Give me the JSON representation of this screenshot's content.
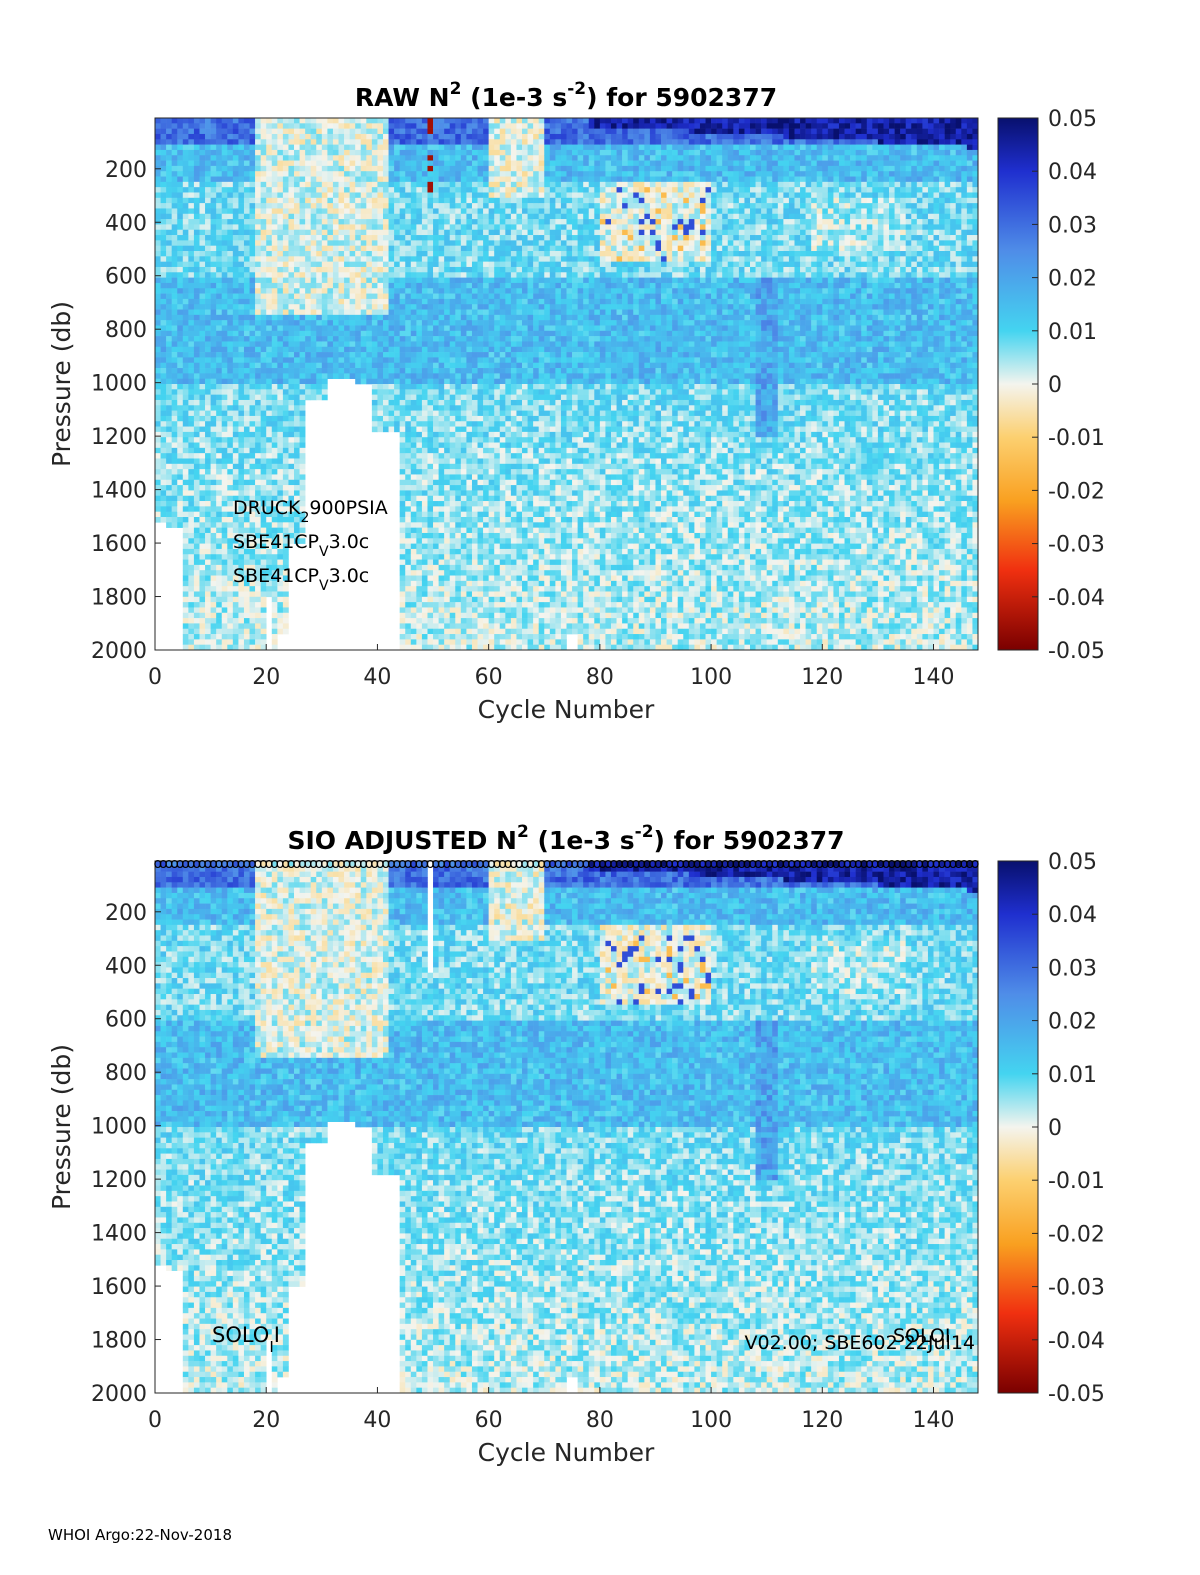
{
  "chart_data": [
    {
      "type": "heatmap",
      "title_parts": [
        "RAW N",
        "2",
        " (1e-3 s",
        "-2",
        ") for 5902377"
      ],
      "xlabel": "Cycle Number",
      "ylabel": "Pressure (db)",
      "xlim": [
        0,
        148
      ],
      "ylim": [
        2000,
        10
      ],
      "xticks": [
        "0",
        "20",
        "40",
        "60",
        "80",
        "100",
        "120",
        "140"
      ],
      "yticks": [
        "200",
        "400",
        "600",
        "800",
        "1000",
        "1200",
        "1400",
        "1600",
        "1800",
        "2000"
      ],
      "colorbar": {
        "min": -0.05,
        "max": 0.05,
        "ticks": [
          "0.05",
          "0.04",
          "0.03",
          "0.02",
          "0.01",
          "0",
          "-0.01",
          "-0.02",
          "-0.03",
          "-0.04",
          "-0.05"
        ]
      },
      "annotations": [
        {
          "base": "DRUCK",
          "sub": "2",
          "rest": "900PSIA"
        },
        {
          "base": "SBE41CP",
          "sub": "V",
          "rest": "3.0c"
        },
        {
          "base": "SBE41CP",
          "sub": "V",
          "rest": "3.0c"
        }
      ]
    },
    {
      "type": "heatmap",
      "title_parts": [
        "SIO  ADJUSTED N",
        "2",
        " (1e-3 s",
        "-2",
        ") for 5902377"
      ],
      "xlabel": "Cycle Number",
      "ylabel": "Pressure (db)",
      "xlim": [
        0,
        148
      ],
      "ylim": [
        2000,
        10
      ],
      "xticks": [
        "0",
        "20",
        "40",
        "60",
        "80",
        "100",
        "120",
        "140"
      ],
      "yticks": [
        "200",
        "400",
        "600",
        "800",
        "1000",
        "1200",
        "1400",
        "1600",
        "1800",
        "2000"
      ],
      "colorbar": {
        "min": -0.05,
        "max": 0.05,
        "ticks": [
          "0.05",
          "0.04",
          "0.03",
          "0.02",
          "0.01",
          "0",
          "-0.01",
          "-0.02",
          "-0.03",
          "-0.04",
          "-0.05"
        ]
      },
      "qc_marker": "o",
      "annotations_left": {
        "base": "SOLO",
        "sub": "I",
        "rest": "I"
      },
      "annotation_right": "V02.00; SBE602 22Jul14",
      "annotation_right2": "SOLOI"
    }
  ],
  "footer": "WHOI Argo:22-Nov-2018"
}
